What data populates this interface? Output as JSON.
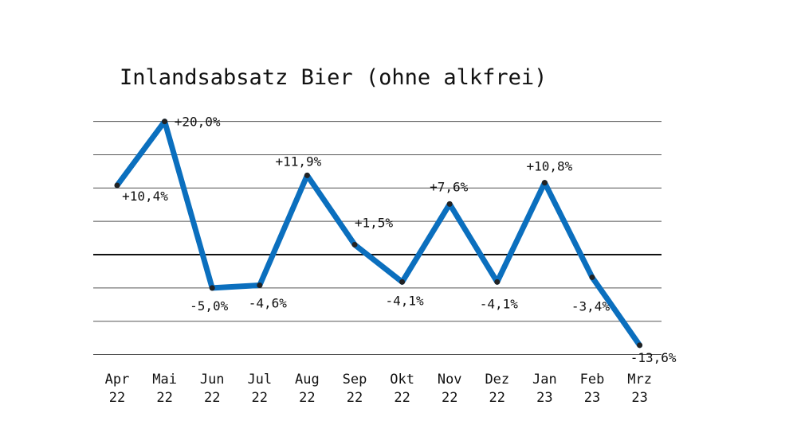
{
  "chart_data": {
    "type": "line",
    "title": "Inlandsabsatz Bier (ohne alkfrei)",
    "xlabel": "",
    "ylabel": "",
    "ylim": [
      -15,
      20
    ],
    "gridlines": [
      20,
      15,
      10,
      5,
      0,
      -5,
      -10,
      -15
    ],
    "grid": true,
    "categories": [
      [
        "Apr",
        "22"
      ],
      [
        "Mai",
        "22"
      ],
      [
        "Jun",
        "22"
      ],
      [
        "Jul",
        "22"
      ],
      [
        "Aug",
        "22"
      ],
      [
        "Sep",
        "22"
      ],
      [
        "Okt",
        "22"
      ],
      [
        "Nov",
        "22"
      ],
      [
        "Dez",
        "22"
      ],
      [
        "Jan",
        "23"
      ],
      [
        "Feb",
        "23"
      ],
      [
        "Mrz",
        "23"
      ]
    ],
    "series": [
      {
        "name": "Inlandsabsatz Bier",
        "color": "#0b6fbe",
        "values": [
          10.4,
          20.0,
          -5.0,
          -4.6,
          11.9,
          1.5,
          -4.1,
          7.6,
          -4.1,
          10.8,
          -3.4,
          -13.6
        ],
        "labels": [
          "+10,4%",
          "+20,0%",
          "-5,0%",
          "-4,6%",
          "+11,9%",
          "+1,5%",
          "-4,1%",
          "+7,6%",
          "-4,1%",
          "+10,8%",
          "-3,4%",
          "-13,6%"
        ]
      }
    ]
  }
}
